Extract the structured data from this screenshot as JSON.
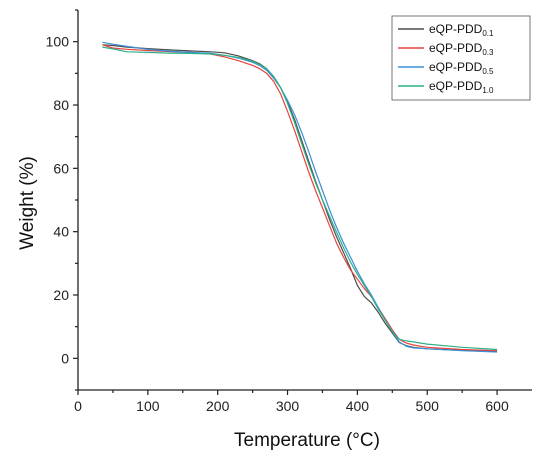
{
  "chart_data": {
    "type": "line",
    "title": "",
    "xlabel": "Temperature (°C)",
    "ylabel": "Weight (%)",
    "xlim": [
      0,
      650
    ],
    "ylim": [
      -10,
      110
    ],
    "xticks": [
      0,
      100,
      200,
      300,
      400,
      500,
      600
    ],
    "yticks": [
      0,
      20,
      40,
      60,
      80,
      100
    ],
    "grid": false,
    "legend_position": "top-right",
    "series": [
      {
        "name": "eQP-PDD0.1",
        "label_main": "eQP-PDD",
        "label_sub": "0.1",
        "color": "#4d4d4d",
        "x": [
          35,
          50,
          70,
          100,
          130,
          160,
          190,
          210,
          230,
          250,
          260,
          270,
          280,
          290,
          300,
          310,
          320,
          330,
          340,
          350,
          360,
          370,
          380,
          390,
          400,
          410,
          420,
          430,
          440,
          450,
          460,
          470,
          480,
          500,
          550,
          600
        ],
        "y": [
          99,
          98.8,
          98.3,
          97.8,
          97.4,
          97.1,
          96.8,
          96.5,
          95.5,
          94,
          93,
          91.5,
          89,
          85.5,
          81,
          75.5,
          69,
          62.5,
          56,
          50,
          44,
          38.5,
          33.5,
          28.5,
          23,
          19.5,
          17.5,
          14.5,
          11,
          8,
          5,
          4,
          3.5,
          3,
          2.5,
          2.2
        ]
      },
      {
        "name": "eQP-PDD0.3",
        "label_main": "eQP-PDD",
        "label_sub": "0.3",
        "color": "#e8433e",
        "x": [
          35,
          50,
          70,
          100,
          130,
          160,
          190,
          210,
          230,
          250,
          260,
          270,
          280,
          290,
          300,
          310,
          320,
          330,
          340,
          350,
          360,
          370,
          380,
          390,
          400,
          410,
          420,
          430,
          440,
          450,
          460,
          470,
          480,
          500,
          550,
          600
        ],
        "y": [
          99,
          98,
          97.6,
          97.2,
          96.9,
          96.6,
          96.1,
          95.2,
          94,
          92.5,
          91.5,
          90,
          87.5,
          83.5,
          78,
          72,
          65.5,
          59,
          53,
          47.5,
          42,
          36.5,
          32,
          28,
          25,
          22,
          19.5,
          16,
          12.5,
          9,
          6,
          4.8,
          4.2,
          3.5,
          2.8,
          2.4
        ]
      },
      {
        "name": "eQP-PDD0.5",
        "label_main": "eQP-PDD",
        "label_sub": "0.5",
        "color": "#3a8fd6",
        "x": [
          35,
          50,
          70,
          100,
          130,
          160,
          190,
          210,
          230,
          250,
          260,
          270,
          280,
          290,
          300,
          310,
          320,
          330,
          340,
          350,
          360,
          370,
          380,
          390,
          400,
          410,
          420,
          430,
          440,
          450,
          460,
          470,
          480,
          500,
          550,
          600
        ],
        "y": [
          99.8,
          99.2,
          98.5,
          97.6,
          97,
          96.6,
          96.3,
          95.7,
          94.8,
          93.5,
          92.5,
          91,
          88.5,
          85.5,
          81.5,
          77,
          71.5,
          65.5,
          59,
          53,
          47,
          41.5,
          36.5,
          32,
          27.5,
          23.5,
          20,
          16,
          12,
          8.5,
          5.2,
          3.8,
          3.3,
          3,
          2.4,
          2
        ]
      },
      {
        "name": "eQP-PDD1.0",
        "label_main": "eQP-PDD",
        "label_sub": "1.0",
        "color": "#2fb08a",
        "x": [
          35,
          50,
          70,
          100,
          130,
          160,
          190,
          210,
          230,
          250,
          260,
          270,
          280,
          290,
          300,
          310,
          320,
          330,
          340,
          350,
          360,
          370,
          380,
          390,
          400,
          410,
          420,
          430,
          440,
          450,
          460,
          470,
          480,
          500,
          550,
          600
        ],
        "y": [
          98.3,
          97.7,
          96.8,
          96.6,
          96.4,
          96.3,
          96.1,
          95.7,
          95,
          93.8,
          92.8,
          91.5,
          89,
          85.5,
          80.5,
          74.5,
          68,
          61.5,
          55.5,
          50,
          45,
          40,
          35,
          30.5,
          26.5,
          23,
          19.5,
          15.5,
          12,
          8.5,
          6,
          5.5,
          5.2,
          4.5,
          3.5,
          2.8
        ]
      }
    ]
  }
}
